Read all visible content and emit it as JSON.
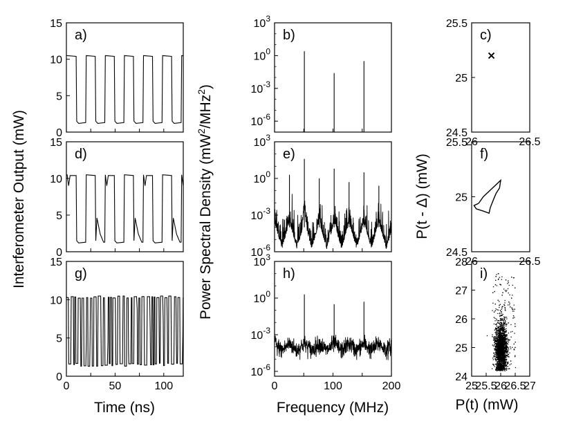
{
  "figure": {
    "col_labels": {
      "time_xlabel": "Time (ns)",
      "time_ylabel": "Interferometer Output (mW)",
      "freq_xlabel": "Frequency (MHz)",
      "freq_ylabel": "Power Spectral Density (mW",
      "freq_ylabel_unit_mid": "/MHz",
      "freq_ylabel_unit_sup": "2",
      "freq_ylabel_end": ")",
      "return_xlabel": "P(t) (mW)",
      "return_ylabel": "P(t - Δ) (mW)"
    },
    "exp_prefix": "10"
  },
  "chart_data": [
    {
      "id": "a",
      "panel_label": "a)",
      "type": "line",
      "kind": "time",
      "xlim": [
        0,
        120
      ],
      "ylim": [
        0,
        15
      ],
      "yticks": [
        "0",
        "5",
        "10",
        "15"
      ],
      "xticks": [],
      "signal": {
        "regime": "periodic square wave",
        "high": 10.5,
        "low": 1.3,
        "period_ns": 19.6,
        "cycles": 6
      }
    },
    {
      "id": "b",
      "panel_label": "b)",
      "type": "line",
      "kind": "spectrum",
      "xlim": [
        0,
        200
      ],
      "ylim_exp": [
        -7,
        3
      ],
      "yticks_exp": [
        "3",
        "0",
        "-3",
        "-6"
      ],
      "xticks": [],
      "peaks": [
        {
          "x": 51,
          "exp": 0.4
        },
        {
          "x": 102,
          "exp": -1.6
        },
        {
          "x": 153,
          "exp": -0.5
        }
      ]
    },
    {
      "id": "c",
      "panel_label": "c)",
      "type": "scatter",
      "kind": "return",
      "xlim": [
        26,
        26.5
      ],
      "ylim": [
        24.5,
        25.5
      ],
      "xticks": [
        "26",
        "26.5"
      ],
      "yticks": [
        "24.5",
        "25",
        "25.5"
      ],
      "points": [
        [
          26.17,
          25.2
        ]
      ],
      "marker": "x"
    },
    {
      "id": "d",
      "panel_label": "d)",
      "type": "line",
      "kind": "time",
      "xlim": [
        0,
        120
      ],
      "ylim": [
        0,
        15
      ],
      "yticks": [
        "0",
        "5",
        "10",
        "15"
      ],
      "xticks": [],
      "signal": {
        "regime": "period-doubled square wave",
        "high": 10.5,
        "low": 1.3,
        "period_ns": 19.6,
        "cycles": 6
      }
    },
    {
      "id": "e",
      "panel_label": "e)",
      "type": "line",
      "kind": "spectrum",
      "xlim": [
        0,
        200
      ],
      "ylim_exp": [
        -6,
        3
      ],
      "yticks_exp": [
        "3",
        "0",
        "-3",
        "-6"
      ],
      "xticks": [],
      "peaks": [
        {
          "x": 25.5,
          "exp": 0.3
        },
        {
          "x": 51,
          "exp": 1.6
        },
        {
          "x": 76.5,
          "exp": 0.0
        },
        {
          "x": 102,
          "exp": 0.8
        },
        {
          "x": 127.5,
          "exp": -0.3
        },
        {
          "x": 153,
          "exp": 0.5
        },
        {
          "x": 178.5,
          "exp": -0.6
        }
      ]
    },
    {
      "id": "f",
      "panel_label": "f)",
      "type": "line",
      "kind": "return",
      "xlim": [
        26,
        26.5
      ],
      "ylim": [
        24.5,
        25.5
      ],
      "xticks": [
        "26",
        "26.5"
      ],
      "yticks": [
        "24.5",
        "25",
        "25.5"
      ],
      "points": [
        [
          26.06,
          24.94
        ],
        [
          26.1,
          25.0
        ],
        [
          26.16,
          25.06
        ],
        [
          26.25,
          25.15
        ],
        [
          26.24,
          25.08
        ],
        [
          26.21,
          25.03
        ],
        [
          26.19,
          24.98
        ],
        [
          26.16,
          24.9
        ],
        [
          26.15,
          24.85
        ],
        [
          26.1,
          24.87
        ],
        [
          26.04,
          24.89
        ],
        [
          26.02,
          24.92
        ],
        [
          26.06,
          24.94
        ]
      ]
    },
    {
      "id": "g",
      "panel_label": "g)",
      "type": "line",
      "kind": "time",
      "xlim": [
        0,
        120
      ],
      "ylim": [
        0,
        15
      ],
      "yticks": [
        "0",
        "5",
        "10",
        "15"
      ],
      "xticks": [
        "0",
        "50",
        "100"
      ],
      "signal": {
        "regime": "chaotic switching",
        "high": 10.5,
        "low": 1.3
      }
    },
    {
      "id": "h",
      "panel_label": "h)",
      "type": "line",
      "kind": "spectrum",
      "xlim": [
        0,
        200
      ],
      "ylim_exp": [
        -6.4,
        3
      ],
      "yticks_exp": [
        "3",
        "0",
        "-3",
        "-6"
      ],
      "xticks": [
        "0",
        "100",
        "200"
      ],
      "peaks": [
        {
          "x": 51,
          "exp": 0.3
        },
        {
          "x": 102,
          "exp": -0.5
        },
        {
          "x": 153,
          "exp": -0.3
        }
      ]
    },
    {
      "id": "i",
      "panel_label": "i)",
      "type": "scatter",
      "kind": "return",
      "xlim": [
        25,
        27
      ],
      "ylim": [
        24,
        28
      ],
      "xticks": [
        "25",
        "25.5",
        "26",
        "26.5",
        "27"
      ],
      "yticks": [
        "24",
        "25",
        "26",
        "27",
        "28"
      ],
      "cloud": {
        "center": [
          26.0,
          25.0
        ],
        "spread": [
          0.1,
          0.45
        ],
        "n": 2600
      }
    }
  ]
}
